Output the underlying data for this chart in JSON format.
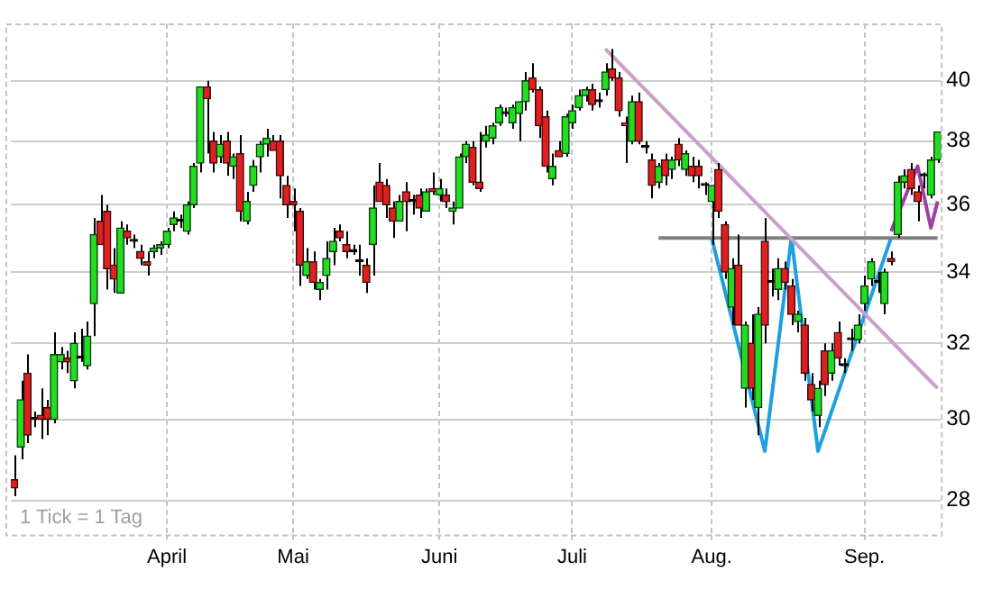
{
  "chart_data": {
    "type": "candlestick",
    "categories": [
      null,
      null,
      null,
      null,
      null,
      null,
      null,
      null,
      null,
      null,
      null,
      null,
      null,
      null,
      null,
      null,
      null,
      null,
      null,
      null,
      null,
      null,
      null,
      "April",
      null,
      null,
      null,
      null,
      null,
      null,
      null,
      null,
      null,
      null,
      null,
      null,
      null,
      null,
      null,
      null,
      null,
      null,
      "Mai",
      null,
      null,
      null,
      null,
      null,
      null,
      null,
      null,
      null,
      null,
      null,
      null,
      null,
      null,
      null,
      null,
      null,
      null,
      null,
      null,
      null,
      "Juni",
      null,
      null,
      null,
      null,
      null,
      null,
      null,
      null,
      null,
      null,
      null,
      null,
      null,
      null,
      null,
      null,
      null,
      null,
      null,
      "Juli",
      null,
      null,
      null,
      null,
      null,
      null,
      null,
      null,
      null,
      null,
      null,
      null,
      null,
      null,
      null,
      null,
      null,
      null,
      null,
      null,
      "Aug.",
      null,
      null,
      null,
      null,
      null,
      null,
      null,
      null,
      null,
      null,
      null,
      null,
      null,
      null,
      null,
      null,
      null,
      null,
      null,
      null,
      null,
      null,
      "Sep.",
      null,
      null,
      null,
      null,
      null,
      null,
      null,
      null,
      null,
      null,
      null
    ],
    "ohlc": [
      [
        28.5,
        29.1,
        28.1,
        28.3
      ],
      [
        29.3,
        31.0,
        29.0,
        30.5
      ],
      [
        31.2,
        31.7,
        29.4,
        29.6
      ],
      [
        30.0,
        30.2,
        29.8,
        30.0
      ],
      [
        30.1,
        30.8,
        29.5,
        30.0
      ],
      [
        30.3,
        30.5,
        29.6,
        30.0
      ],
      [
        30.0,
        32.3,
        29.9,
        31.7
      ],
      [
        31.5,
        31.9,
        31.3,
        31.7
      ],
      [
        31.6,
        31.8,
        31.2,
        31.5
      ],
      [
        31.0,
        32.3,
        30.8,
        32.0
      ],
      [
        31.6,
        32.4,
        31.5,
        31.6
      ],
      [
        31.4,
        32.6,
        31.3,
        32.2
      ],
      [
        33.1,
        35.6,
        32.2,
        35.1
      ],
      [
        35.5,
        36.3,
        34.8,
        34.8
      ],
      [
        35.8,
        36.0,
        33.5,
        34.1
      ],
      [
        34.2,
        34.7,
        33.4,
        33.8
      ],
      [
        33.4,
        35.5,
        33.4,
        35.3
      ],
      [
        35.2,
        35.4,
        34.8,
        35.0
      ],
      [
        34.9,
        35.1,
        34.7,
        34.9
      ],
      [
        34.6,
        34.8,
        34.2,
        34.4
      ],
      [
        34.3,
        34.6,
        33.9,
        34.2
      ],
      [
        34.6,
        34.8,
        34.4,
        34.7
      ],
      [
        34.7,
        34.9,
        34.5,
        34.8
      ],
      [
        34.8,
        35.3,
        34.7,
        35.2
      ],
      [
        35.4,
        35.8,
        35.2,
        35.6
      ],
      [
        35.5,
        35.7,
        35.3,
        35.5
      ],
      [
        35.2,
        36.1,
        35.1,
        36.0
      ],
      [
        36.0,
        37.3,
        35.9,
        37.2
      ],
      [
        37.3,
        39.8,
        37.0,
        39.8
      ],
      [
        39.8,
        40.0,
        37.6,
        39.4
      ],
      [
        38.0,
        38.3,
        37.0,
        37.3
      ],
      [
        37.5,
        38.2,
        37.3,
        37.9
      ],
      [
        38.0,
        38.3,
        36.9,
        37.3
      ],
      [
        37.2,
        37.6,
        36.8,
        37.5
      ],
      [
        37.6,
        38.2,
        35.5,
        35.8
      ],
      [
        35.5,
        36.4,
        35.4,
        36.1
      ],
      [
        36.6,
        37.4,
        36.4,
        37.2
      ],
      [
        37.5,
        38.0,
        37.0,
        37.9
      ],
      [
        37.9,
        38.4,
        37.5,
        38.1
      ],
      [
        38.0,
        38.2,
        37.7,
        37.7
      ],
      [
        38.0,
        38.2,
        36.2,
        36.9
      ],
      [
        36.6,
        36.9,
        35.6,
        36.0
      ],
      [
        36.1,
        36.5,
        35.2,
        36.0
      ],
      [
        35.8,
        35.9,
        33.6,
        34.2
      ],
      [
        33.9,
        34.7,
        33.8,
        34.3
      ],
      [
        34.3,
        34.6,
        33.5,
        33.7
      ],
      [
        33.5,
        33.8,
        33.2,
        33.7
      ],
      [
        33.9,
        34.9,
        33.5,
        34.4
      ],
      [
        34.6,
        35.3,
        34.2,
        34.9
      ],
      [
        35.2,
        35.4,
        34.9,
        35.0
      ],
      [
        34.8,
        35.2,
        34.4,
        34.6
      ],
      [
        34.6,
        34.8,
        34.5,
        34.6
      ],
      [
        34.3,
        34.8,
        33.9,
        34.3
      ],
      [
        34.2,
        34.4,
        33.4,
        33.7
      ],
      [
        34.8,
        36.6,
        33.9,
        35.9
      ],
      [
        36.7,
        37.3,
        36.1,
        36.1
      ],
      [
        36.6,
        36.8,
        35.6,
        36.0
      ],
      [
        35.9,
        36.1,
        35.0,
        35.5
      ],
      [
        35.5,
        36.3,
        35.5,
        36.1
      ],
      [
        36.4,
        36.7,
        35.2,
        36.1
      ],
      [
        36.1,
        36.3,
        35.7,
        36.1
      ],
      [
        36.3,
        36.5,
        35.6,
        35.9
      ],
      [
        35.8,
        36.5,
        35.8,
        36.4
      ],
      [
        36.5,
        37.0,
        36.3,
        36.4
      ],
      [
        36.3,
        36.8,
        36.1,
        36.5
      ],
      [
        36.3,
        36.5,
        35.9,
        36.1
      ],
      [
        35.8,
        36.1,
        35.4,
        35.9
      ],
      [
        35.9,
        37.6,
        35.9,
        37.5
      ],
      [
        37.5,
        38.0,
        37.3,
        37.9
      ],
      [
        37.8,
        38.0,
        36.6,
        36.7
      ],
      [
        36.7,
        38.3,
        36.4,
        36.5
      ],
      [
        38.0,
        38.5,
        37.8,
        38.2
      ],
      [
        38.1,
        38.6,
        37.9,
        38.5
      ],
      [
        38.6,
        39.2,
        38.5,
        39.1
      ],
      [
        38.9,
        39.1,
        38.8,
        38.9
      ],
      [
        38.6,
        39.2,
        38.4,
        39.1
      ],
      [
        38.9,
        39.3,
        38.0,
        39.3
      ],
      [
        39.3,
        40.3,
        39.0,
        40.0
      ],
      [
        40.1,
        40.6,
        39.6,
        39.7
      ],
      [
        39.7,
        39.8,
        38.1,
        38.5
      ],
      [
        38.8,
        39.0,
        37.0,
        37.2
      ],
      [
        36.8,
        37.6,
        36.6,
        37.2
      ],
      [
        37.7,
        38.0,
        37.5,
        37.5
      ],
      [
        37.6,
        38.9,
        37.5,
        38.8
      ],
      [
        38.6,
        39.2,
        38.4,
        39.0
      ],
      [
        39.1,
        39.7,
        39.0,
        39.5
      ],
      [
        39.5,
        39.8,
        39.3,
        39.7
      ],
      [
        39.7,
        39.9,
        39.0,
        39.2
      ],
      [
        39.3,
        39.6,
        39.1,
        39.3
      ],
      [
        39.7,
        40.6,
        39.5,
        40.3
      ],
      [
        40.4,
        41.1,
        40.0,
        40.1
      ],
      [
        40.1,
        40.3,
        38.8,
        39.0
      ],
      [
        38.6,
        38.8,
        37.3,
        38.5
      ],
      [
        38.0,
        39.5,
        37.9,
        39.3
      ],
      [
        39.3,
        39.6,
        37.9,
        38.0
      ],
      [
        37.8,
        38.0,
        37.6,
        37.8
      ],
      [
        37.4,
        37.6,
        36.2,
        36.6
      ],
      [
        36.7,
        37.3,
        36.5,
        37.2
      ],
      [
        37.4,
        37.6,
        36.6,
        36.9
      ],
      [
        37.1,
        37.5,
        36.8,
        37.4
      ],
      [
        37.9,
        38.1,
        37.2,
        37.4
      ],
      [
        37.1,
        37.7,
        36.9,
        37.6
      ],
      [
        37.2,
        37.5,
        36.7,
        36.9
      ],
      [
        37.2,
        37.4,
        36.5,
        36.9
      ],
      [
        36.6,
        36.7,
        36.3,
        36.6
      ],
      [
        36.1,
        36.6,
        34.8,
        36.6
      ],
      [
        37.1,
        37.3,
        35.6,
        35.8
      ],
      [
        35.4,
        35.5,
        33.8,
        34.0
      ],
      [
        33.0,
        34.4,
        32.5,
        34.1
      ],
      [
        34.2,
        35.1,
        32.5,
        32.5
      ],
      [
        30.8,
        32.6,
        30.3,
        32.5
      ],
      [
        32.0,
        32.8,
        30.5,
        30.8
      ],
      [
        30.3,
        33.0,
        29.6,
        32.8
      ],
      [
        34.9,
        35.6,
        32.0,
        32.5
      ],
      [
        33.7,
        34.1,
        33.3,
        33.7
      ],
      [
        33.5,
        34.4,
        33.2,
        34.1
      ],
      [
        34.1,
        34.3,
        33.5,
        33.7
      ],
      [
        33.6,
        33.8,
        32.5,
        32.8
      ],
      [
        32.6,
        32.9,
        32.3,
        32.8
      ],
      [
        32.5,
        32.7,
        31.0,
        31.2
      ],
      [
        30.9,
        31.2,
        30.2,
        30.5
      ],
      [
        30.1,
        31.0,
        29.8,
        30.8
      ],
      [
        31.8,
        32.0,
        30.6,
        30.9
      ],
      [
        31.2,
        32.0,
        31.0,
        31.8
      ],
      [
        32.3,
        32.6,
        31.4,
        31.6
      ],
      [
        31.4,
        31.6,
        31.2,
        31.4
      ],
      [
        32.1,
        32.4,
        31.8,
        32.1
      ],
      [
        32.1,
        32.8,
        32.0,
        32.5
      ],
      [
        33.1,
        33.9,
        32.9,
        33.6
      ],
      [
        33.8,
        34.4,
        33.6,
        34.3
      ],
      [
        33.7,
        34.0,
        33.4,
        33.7
      ],
      [
        33.1,
        34.1,
        32.8,
        34.0
      ],
      [
        34.4,
        34.6,
        34.2,
        34.3
      ],
      [
        35.1,
        36.9,
        35.0,
        36.7
      ],
      [
        36.7,
        37.1,
        36.5,
        36.9
      ],
      [
        37.1,
        37.3,
        36.3,
        36.5
      ],
      [
        36.4,
        36.6,
        35.5,
        36.1
      ],
      [
        36.9,
        37.0,
        36.5,
        36.9
      ],
      [
        36.3,
        37.5,
        36.2,
        37.4
      ],
      [
        37.4,
        38.3,
        37.3,
        38.3
      ]
    ],
    "series": [
      {
        "type": "line",
        "color": "#c8a0c8",
        "values": [
          null,
          null,
          null,
          null,
          null,
          null,
          null,
          null,
          null,
          null,
          null,
          null,
          null,
          null,
          null,
          null,
          null,
          null,
          null,
          null,
          null,
          null,
          null,
          null,
          null,
          null,
          null,
          null,
          null,
          null,
          null,
          null,
          null,
          null,
          null,
          null,
          null,
          null,
          null,
          null,
          null,
          null,
          null,
          null,
          null,
          null,
          null,
          null,
          null,
          null,
          null,
          null,
          null,
          null,
          null,
          null,
          null,
          null,
          null,
          null,
          null,
          null,
          null,
          null,
          null,
          null,
          null,
          null,
          null,
          null,
          null,
          null,
          null,
          null,
          null,
          null,
          null,
          null,
          null,
          null,
          null,
          null,
          null,
          null,
          null,
          null,
          null,
          null,
          null,
          41.1,
          null,
          null,
          null,
          null,
          null,
          null,
          null,
          null,
          null,
          null,
          null,
          null,
          null,
          null,
          null,
          null,
          null,
          null,
          null,
          null,
          null,
          null,
          null,
          null,
          null,
          null,
          null,
          null,
          null,
          null,
          null,
          null,
          null,
          null,
          null,
          null,
          null,
          null,
          null,
          null,
          null,
          null,
          null,
          null,
          null,
          null,
          null,
          null,
          null,
          30.8
        ]
      },
      {
        "type": "line",
        "color": "#808080",
        "values": [
          null,
          null,
          null,
          null,
          null,
          null,
          null,
          null,
          null,
          null,
          null,
          null,
          null,
          null,
          null,
          null,
          null,
          null,
          null,
          null,
          null,
          null,
          null,
          null,
          null,
          null,
          null,
          null,
          null,
          null,
          null,
          null,
          null,
          null,
          null,
          null,
          null,
          null,
          null,
          null,
          null,
          null,
          null,
          null,
          null,
          null,
          null,
          null,
          null,
          null,
          null,
          null,
          null,
          null,
          null,
          null,
          null,
          null,
          null,
          null,
          null,
          null,
          null,
          null,
          null,
          null,
          null,
          null,
          null,
          null,
          null,
          null,
          null,
          null,
          null,
          null,
          null,
          null,
          null,
          null,
          null,
          null,
          null,
          null,
          null,
          null,
          null,
          null,
          null,
          null,
          null,
          null,
          null,
          null,
          null,
          null,
          null,
          35,
          null,
          null,
          null,
          null,
          null,
          null,
          null,
          null,
          null,
          null,
          null,
          null,
          null,
          null,
          null,
          null,
          null,
          null,
          null,
          null,
          null,
          null,
          null,
          null,
          null,
          null,
          null,
          null,
          null,
          null,
          null,
          null,
          null,
          null,
          null,
          null,
          null,
          null,
          null,
          null,
          null,
          35
        ]
      },
      {
        "type": "line",
        "color": "#1ea0e0",
        "values": [
          null,
          null,
          null,
          null,
          null,
          null,
          null,
          null,
          null,
          null,
          null,
          null,
          null,
          null,
          null,
          null,
          null,
          null,
          null,
          null,
          null,
          null,
          null,
          null,
          null,
          null,
          null,
          null,
          null,
          null,
          null,
          null,
          null,
          null,
          null,
          null,
          null,
          null,
          null,
          null,
          null,
          null,
          null,
          null,
          null,
          null,
          null,
          null,
          null,
          null,
          null,
          null,
          null,
          null,
          null,
          null,
          null,
          null,
          null,
          null,
          null,
          null,
          null,
          null,
          null,
          null,
          null,
          null,
          null,
          null,
          null,
          null,
          null,
          null,
          null,
          null,
          null,
          null,
          null,
          null,
          null,
          null,
          null,
          null,
          null,
          null,
          null,
          null,
          null,
          null,
          null,
          null,
          null,
          null,
          null,
          null,
          null,
          null,
          null,
          null,
          null,
          null,
          null,
          null,
          null,
          35,
          null,
          null,
          null,
          null,
          null,
          null,
          null,
          29.2,
          null,
          null,
          null,
          35,
          null,
          null,
          null,
          29.2,
          null,
          null,
          null,
          null,
          null,
          null,
          null,
          null,
          null,
          null,
          35,
          null,
          null,
          null,
          null,
          null,
          null,
          null
        ]
      },
      {
        "type": "line",
        "color": "#a040a0",
        "values": [
          null,
          null,
          null,
          null,
          null,
          null,
          null,
          null,
          null,
          null,
          null,
          null,
          null,
          null,
          null,
          null,
          null,
          null,
          null,
          null,
          null,
          null,
          null,
          null,
          null,
          null,
          null,
          null,
          null,
          null,
          null,
          null,
          null,
          null,
          null,
          null,
          null,
          null,
          null,
          null,
          null,
          null,
          null,
          null,
          null,
          null,
          null,
          null,
          null,
          null,
          null,
          null,
          null,
          null,
          null,
          null,
          null,
          null,
          null,
          null,
          null,
          null,
          null,
          null,
          null,
          null,
          null,
          null,
          null,
          null,
          null,
          null,
          null,
          null,
          null,
          null,
          null,
          null,
          null,
          null,
          null,
          null,
          null,
          null,
          null,
          null,
          null,
          null,
          null,
          null,
          null,
          null,
          null,
          null,
          null,
          null,
          null,
          null,
          null,
          null,
          null,
          null,
          null,
          null,
          null,
          null,
          null,
          null,
          null,
          null,
          null,
          null,
          null,
          null,
          null,
          null,
          null,
          null,
          null,
          null,
          null,
          null,
          null,
          null,
          null,
          null,
          null,
          null,
          null,
          null,
          null,
          null,
          35.2,
          null,
          null,
          null,
          37.2,
          null,
          35.3,
          36.1
        ]
      }
    ],
    "ylim": [
      27.2,
      42
    ],
    "yticks": [
      28,
      30,
      32,
      34,
      36,
      38,
      40
    ],
    "log": "y",
    "grid": true,
    "annotations": [
      "1 Tick = 1 Tag"
    ]
  }
}
